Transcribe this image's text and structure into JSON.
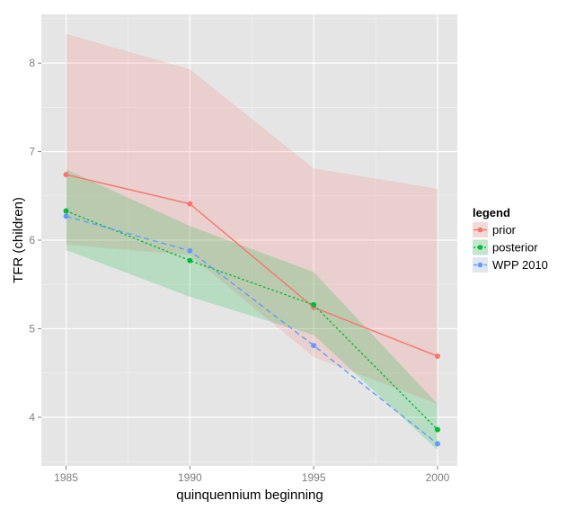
{
  "chart_data": {
    "type": "line",
    "title": "",
    "xlabel": "quinquennium beginning",
    "ylabel": "TFR (children)",
    "x": [
      1985,
      1990,
      1995,
      2000
    ],
    "xlim": [
      1984,
      2000.8
    ],
    "ylim": [
      3.45,
      8.55
    ],
    "x_ticks": [
      "1985",
      "1990",
      "1995",
      "2000"
    ],
    "y_ticks": [
      "4",
      "5",
      "6",
      "7",
      "8"
    ],
    "grid": true,
    "legend": {
      "title": "legend",
      "position": "right"
    },
    "series": [
      {
        "name": "prior",
        "color": "#F8766D",
        "line_style": "solid",
        "values": [
          6.74,
          6.41,
          5.24,
          4.69
        ],
        "band_upper": [
          8.33,
          7.93,
          6.81,
          6.58
        ],
        "band_lower": [
          5.95,
          5.83,
          4.68,
          4.15
        ]
      },
      {
        "name": "posterior",
        "color": "#00BA38",
        "line_style": "dotted",
        "values": [
          6.33,
          5.77,
          5.27,
          3.86
        ],
        "band_upper": [
          6.8,
          6.16,
          5.64,
          4.15
        ],
        "band_lower": [
          5.89,
          5.36,
          4.93,
          3.63
        ]
      },
      {
        "name": "WPP 2010",
        "color": "#619CFF",
        "line_style": "dashed",
        "values": [
          6.27,
          5.88,
          4.81,
          3.7
        ]
      }
    ]
  }
}
